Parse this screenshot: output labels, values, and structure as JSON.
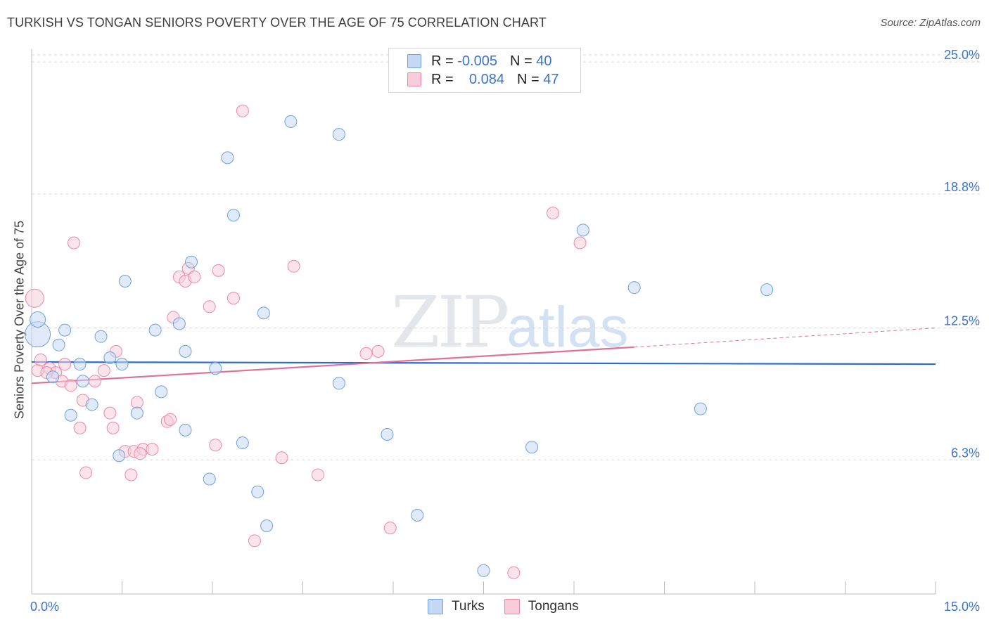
{
  "title": "TURKISH VS TONGAN SENIORS POVERTY OVER THE AGE OF 75 CORRELATION CHART",
  "source": "Source: ZipAtlas.com",
  "watermark": {
    "zip": "ZIP",
    "atlas": "atlas"
  },
  "legend": {
    "rows": [
      {
        "r_label": "R =",
        "r_value": "-0.005",
        "n_label": "N =",
        "n_value": "40"
      },
      {
        "r_label": "R =",
        "r_value": "0.084",
        "n_label": "N =",
        "n_value": "47"
      }
    ]
  },
  "bottom_legend": {
    "turks": "Turks",
    "tongans": "Tongans"
  },
  "chart_data": {
    "type": "scatter",
    "title": "TURKISH VS TONGAN SENIORS POVERTY OVER THE AGE OF 75 CORRELATION CHART",
    "xlabel": "",
    "ylabel": "Seniors Poverty Over the Age of 75",
    "xlim": [
      0,
      15
    ],
    "ylim": [
      0,
      25.6
    ],
    "x_tick_labels": [
      "0.0%",
      "15.0%"
    ],
    "y_ticks": [
      6.3,
      12.5,
      18.8,
      25.0
    ],
    "y_tick_labels": [
      "6.3%",
      "12.5%",
      "18.8%",
      "25.0%"
    ],
    "colors": {
      "turks": "#6fa0e0",
      "turks_fill": "#c6d9f4",
      "tongans": "#ee88a8",
      "tongans_fill": "#f8cdd9",
      "turks_line": "#2f6dc8",
      "tongans_line": "#e0709a",
      "axis_text": "#3b74c9"
    },
    "series": [
      {
        "name": "Turks",
        "r": -0.005,
        "n": 40,
        "trend": {
          "x": [
            0,
            15
          ],
          "y": [
            10.9,
            10.8
          ]
        },
        "points": [
          [
            0.1,
            12.2
          ],
          [
            0.1,
            12.9
          ],
          [
            0.35,
            10.2
          ],
          [
            0.55,
            12.4
          ],
          [
            0.45,
            11.7
          ],
          [
            0.8,
            10.8
          ],
          [
            0.85,
            10.0
          ],
          [
            0.65,
            8.4
          ],
          [
            1.0,
            8.9
          ],
          [
            1.15,
            12.1
          ],
          [
            1.55,
            14.7
          ],
          [
            1.3,
            11.1
          ],
          [
            1.5,
            10.8
          ],
          [
            1.45,
            6.5
          ],
          [
            1.75,
            8.5
          ],
          [
            2.05,
            12.4
          ],
          [
            2.15,
            9.5
          ],
          [
            2.55,
            11.4
          ],
          [
            2.45,
            12.7
          ],
          [
            2.65,
            15.6
          ],
          [
            2.55,
            7.7
          ],
          [
            3.05,
            10.6
          ],
          [
            2.95,
            5.4
          ],
          [
            3.25,
            20.5
          ],
          [
            3.35,
            17.8
          ],
          [
            3.85,
            13.2
          ],
          [
            3.5,
            7.1
          ],
          [
            3.75,
            4.8
          ],
          [
            3.9,
            3.2
          ],
          [
            4.3,
            22.2
          ],
          [
            5.1,
            21.6
          ],
          [
            5.1,
            9.9
          ],
          [
            5.9,
            7.5
          ],
          [
            6.4,
            3.7
          ],
          [
            7.5,
            1.1
          ],
          [
            8.3,
            6.9
          ],
          [
            9.15,
            17.1
          ],
          [
            10.0,
            14.4
          ],
          [
            11.1,
            8.7
          ],
          [
            12.2,
            14.3
          ]
        ]
      },
      {
        "name": "Tongans",
        "r": 0.084,
        "n": 47,
        "trend_solid": {
          "x": [
            0,
            10
          ],
          "y": [
            9.9,
            11.6
          ]
        },
        "trend_dashed": {
          "x": [
            10,
            15
          ],
          "y": [
            11.6,
            12.5
          ]
        },
        "points": [
          [
            0.05,
            13.9
          ],
          [
            0.1,
            10.5
          ],
          [
            0.15,
            11.0
          ],
          [
            0.3,
            10.6
          ],
          [
            0.4,
            10.4
          ],
          [
            0.55,
            10.8
          ],
          [
            0.5,
            10.0
          ],
          [
            0.65,
            9.8
          ],
          [
            0.7,
            16.5
          ],
          [
            0.85,
            9.1
          ],
          [
            0.8,
            7.8
          ],
          [
            0.9,
            5.7
          ],
          [
            1.05,
            10.0
          ],
          [
            1.2,
            10.5
          ],
          [
            1.3,
            8.5
          ],
          [
            1.35,
            7.8
          ],
          [
            1.4,
            11.4
          ],
          [
            1.55,
            6.7
          ],
          [
            1.65,
            5.6
          ],
          [
            1.7,
            6.7
          ],
          [
            1.75,
            9.0
          ],
          [
            1.85,
            6.8
          ],
          [
            2.0,
            6.8
          ],
          [
            2.25,
            8.1
          ],
          [
            2.3,
            8.2
          ],
          [
            2.35,
            13.0
          ],
          [
            2.45,
            14.9
          ],
          [
            2.55,
            14.7
          ],
          [
            2.6,
            15.3
          ],
          [
            2.7,
            14.9
          ],
          [
            2.95,
            13.5
          ],
          [
            3.05,
            7.0
          ],
          [
            3.1,
            15.2
          ],
          [
            3.35,
            13.9
          ],
          [
            3.5,
            22.7
          ],
          [
            3.7,
            2.5
          ],
          [
            4.15,
            6.4
          ],
          [
            4.35,
            15.4
          ],
          [
            4.75,
            5.6
          ],
          [
            5.55,
            11.3
          ],
          [
            5.75,
            11.4
          ],
          [
            5.95,
            3.1
          ],
          [
            8.0,
            1.0
          ],
          [
            8.65,
            17.9
          ],
          [
            9.1,
            16.5
          ],
          [
            1.8,
            6.6
          ],
          [
            0.25,
            10.4
          ]
        ]
      }
    ]
  }
}
